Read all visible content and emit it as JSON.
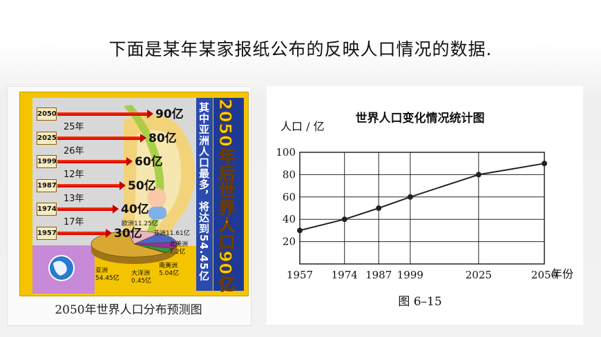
{
  "heading": "下面是某年某家报纸公布的反映人口情况的数据.",
  "poster": {
    "caption": "2050年世界人口分布预测图",
    "vertical_title": "2050年后世界人口90亿",
    "vertical_subtitle": "其中亚洲人口最多，将达到54.45亿",
    "rows": [
      {
        "year": "2050",
        "value_label": "90亿"
      },
      {
        "year": "2025",
        "value_label": "80亿"
      },
      {
        "year": "1999",
        "value_label": "60亿"
      },
      {
        "year": "1987",
        "value_label": "50亿"
      },
      {
        "year": "1974",
        "value_label": "40亿"
      },
      {
        "year": "1957",
        "value_label": "30亿"
      }
    ],
    "gaps": [
      "25年",
      "26年",
      "12年",
      "13年",
      "17年"
    ],
    "continents": [
      {
        "name": "欧洲11.25亿",
        "value": 11.25,
        "color": "#e8b4c6"
      },
      {
        "name": "非洲11.61亿",
        "value": 11.61,
        "color": "#4a68c8"
      },
      {
        "name": "北美洲\n7.2亿",
        "value": 7.2,
        "color": "#9a2fa0"
      },
      {
        "name": "南美洲\n5.04亿",
        "value": 5.04,
        "color": "#2f9a3a"
      },
      {
        "name": "大洋洲\n0.45亿",
        "value": 0.45,
        "color": "#f0e060"
      },
      {
        "name": "亚洲\n54.45亿",
        "value": 54.45,
        "color": "#d9a833"
      }
    ]
  },
  "chart_data": {
    "type": "line",
    "title": "世界人口变化情况统计图",
    "ylabel": "人口 / 亿",
    "xlabel": "年份",
    "caption": "图 6–15",
    "x": [
      1957,
      1974,
      1987,
      1999,
      2025,
      2050
    ],
    "x_tick_labels": [
      "1957",
      "1974",
      "1987",
      "1999",
      "2025",
      "2050"
    ],
    "y": [
      30,
      40,
      50,
      60,
      80,
      90
    ],
    "yticks": [
      20,
      40,
      60,
      80,
      100
    ],
    "ylim": [
      0,
      100
    ],
    "grid": true,
    "colors": {
      "line": "#222222",
      "grid": "#222222"
    }
  }
}
